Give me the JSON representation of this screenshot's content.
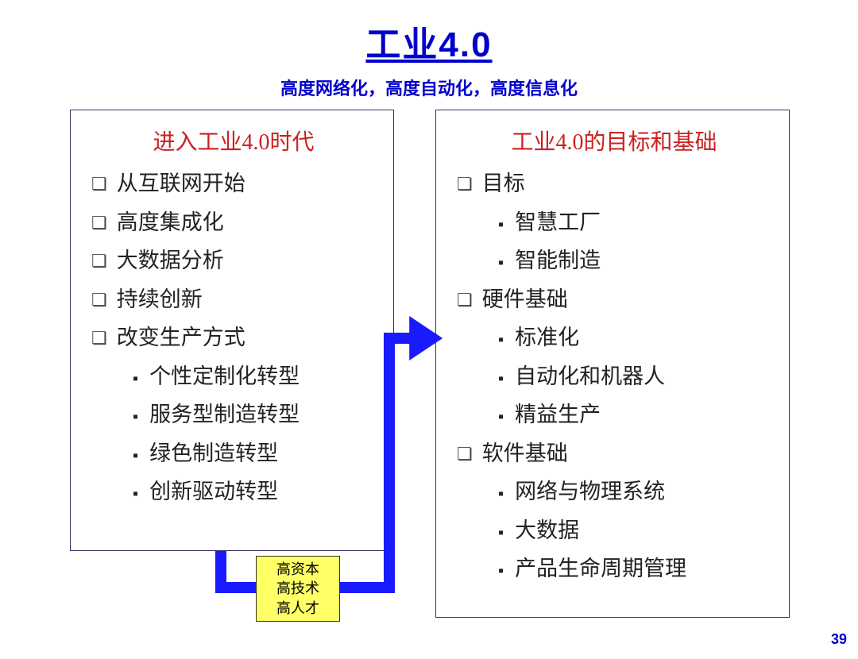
{
  "title": "工业4.0",
  "subtitle": "高度网络化，高度自动化，高度信息化",
  "left_box": {
    "header": "进入工业4.0时代",
    "items": [
      {
        "level": 1,
        "text": "从互联网开始"
      },
      {
        "level": 1,
        "text": "高度集成化"
      },
      {
        "level": 1,
        "text": "大数据分析"
      },
      {
        "level": 1,
        "text": "持续创新"
      },
      {
        "level": 1,
        "text": "改变生产方式"
      },
      {
        "level": 2,
        "text": "个性定制化转型"
      },
      {
        "level": 2,
        "text": "服务型制造转型"
      },
      {
        "level": 2,
        "text": "绿色制造转型"
      },
      {
        "level": 2,
        "text": "创新驱动转型"
      }
    ]
  },
  "right_box": {
    "header": "工业4.0的目标和基础",
    "items": [
      {
        "level": 1,
        "text": "目标"
      },
      {
        "level": 2,
        "text": "智慧工厂"
      },
      {
        "level": 2,
        "text": "智能制造"
      },
      {
        "level": 1,
        "text": "硬件基础"
      },
      {
        "level": 2,
        "text": "标准化"
      },
      {
        "level": 2,
        "text": "自动化和机器人"
      },
      {
        "level": 2,
        "text": "精益生产"
      },
      {
        "level": 1,
        "text": "软件基础"
      },
      {
        "level": 2,
        "text": "网络与物理系统"
      },
      {
        "level": 2,
        "text": "大数据"
      },
      {
        "level": 2,
        "text": "产品生命周期管理"
      }
    ]
  },
  "yellow_box": {
    "lines": [
      "高资本",
      "高技术",
      "高人才"
    ]
  },
  "connector": {
    "color": "#1a1aff",
    "stroke_width": 14
  },
  "page_number": "39",
  "colors": {
    "title": "#0000cc",
    "header": "#cc2222",
    "text": "#222222",
    "border": "#333366",
    "yellow_bg": "#ffff66",
    "background": "#ffffff"
  }
}
